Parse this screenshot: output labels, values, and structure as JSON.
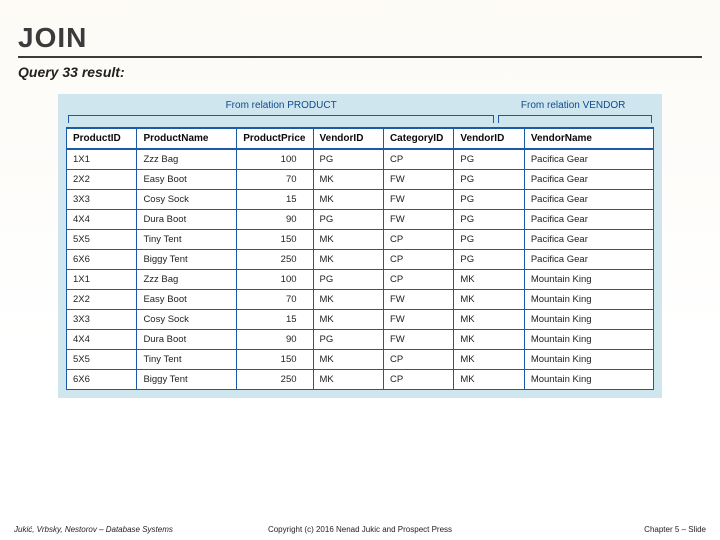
{
  "title": "JOIN",
  "subtitle": "Query 33 result:",
  "relationLabels": {
    "left": "From relation PRODUCT",
    "right": "From relation VENDOR"
  },
  "columns": [
    "ProductID",
    "ProductName",
    "ProductPrice",
    "VendorID",
    "CategoryID",
    "VendorID",
    "VendorName"
  ],
  "colWidths": [
    "12%",
    "17%",
    "13%",
    "12%",
    "12%",
    "12%",
    "22%"
  ],
  "rows": [
    [
      "1X1",
      "Zzz Bag",
      "100",
      "PG",
      "CP",
      "PG",
      "Pacifica Gear"
    ],
    [
      "2X2",
      "Easy Boot",
      "70",
      "MK",
      "FW",
      "PG",
      "Pacifica Gear"
    ],
    [
      "3X3",
      "Cosy Sock",
      "15",
      "MK",
      "FW",
      "PG",
      "Pacifica Gear"
    ],
    [
      "4X4",
      "Dura Boot",
      "90",
      "PG",
      "FW",
      "PG",
      "Pacifica Gear"
    ],
    [
      "5X5",
      "Tiny Tent",
      "150",
      "MK",
      "CP",
      "PG",
      "Pacifica Gear"
    ],
    [
      "6X6",
      "Biggy Tent",
      "250",
      "MK",
      "CP",
      "PG",
      "Pacifica Gear"
    ],
    [
      "1X1",
      "Zzz Bag",
      "100",
      "PG",
      "CP",
      "MK",
      "Mountain King"
    ],
    [
      "2X2",
      "Easy Boot",
      "70",
      "MK",
      "FW",
      "MK",
      "Mountain King"
    ],
    [
      "3X3",
      "Cosy Sock",
      "15",
      "MK",
      "FW",
      "MK",
      "Mountain King"
    ],
    [
      "4X4",
      "Dura Boot",
      "90",
      "PG",
      "FW",
      "MK",
      "Mountain King"
    ],
    [
      "5X5",
      "Tiny Tent",
      "150",
      "MK",
      "CP",
      "MK",
      "Mountain King"
    ],
    [
      "6X6",
      "Biggy Tent",
      "250",
      "MK",
      "CP",
      "MK",
      "Mountain King"
    ]
  ],
  "footer": {
    "left": "Jukić, Vrbsky, Nestorov – Database Systems",
    "center": "Copyright (c) 2016 Nenad Jukic and Prospect Press",
    "right": "Chapter 5 – Slide"
  },
  "colors": {
    "border": "#1a5aa6",
    "labelText": "#104a8a",
    "panelBg": "#cfe6ef"
  }
}
